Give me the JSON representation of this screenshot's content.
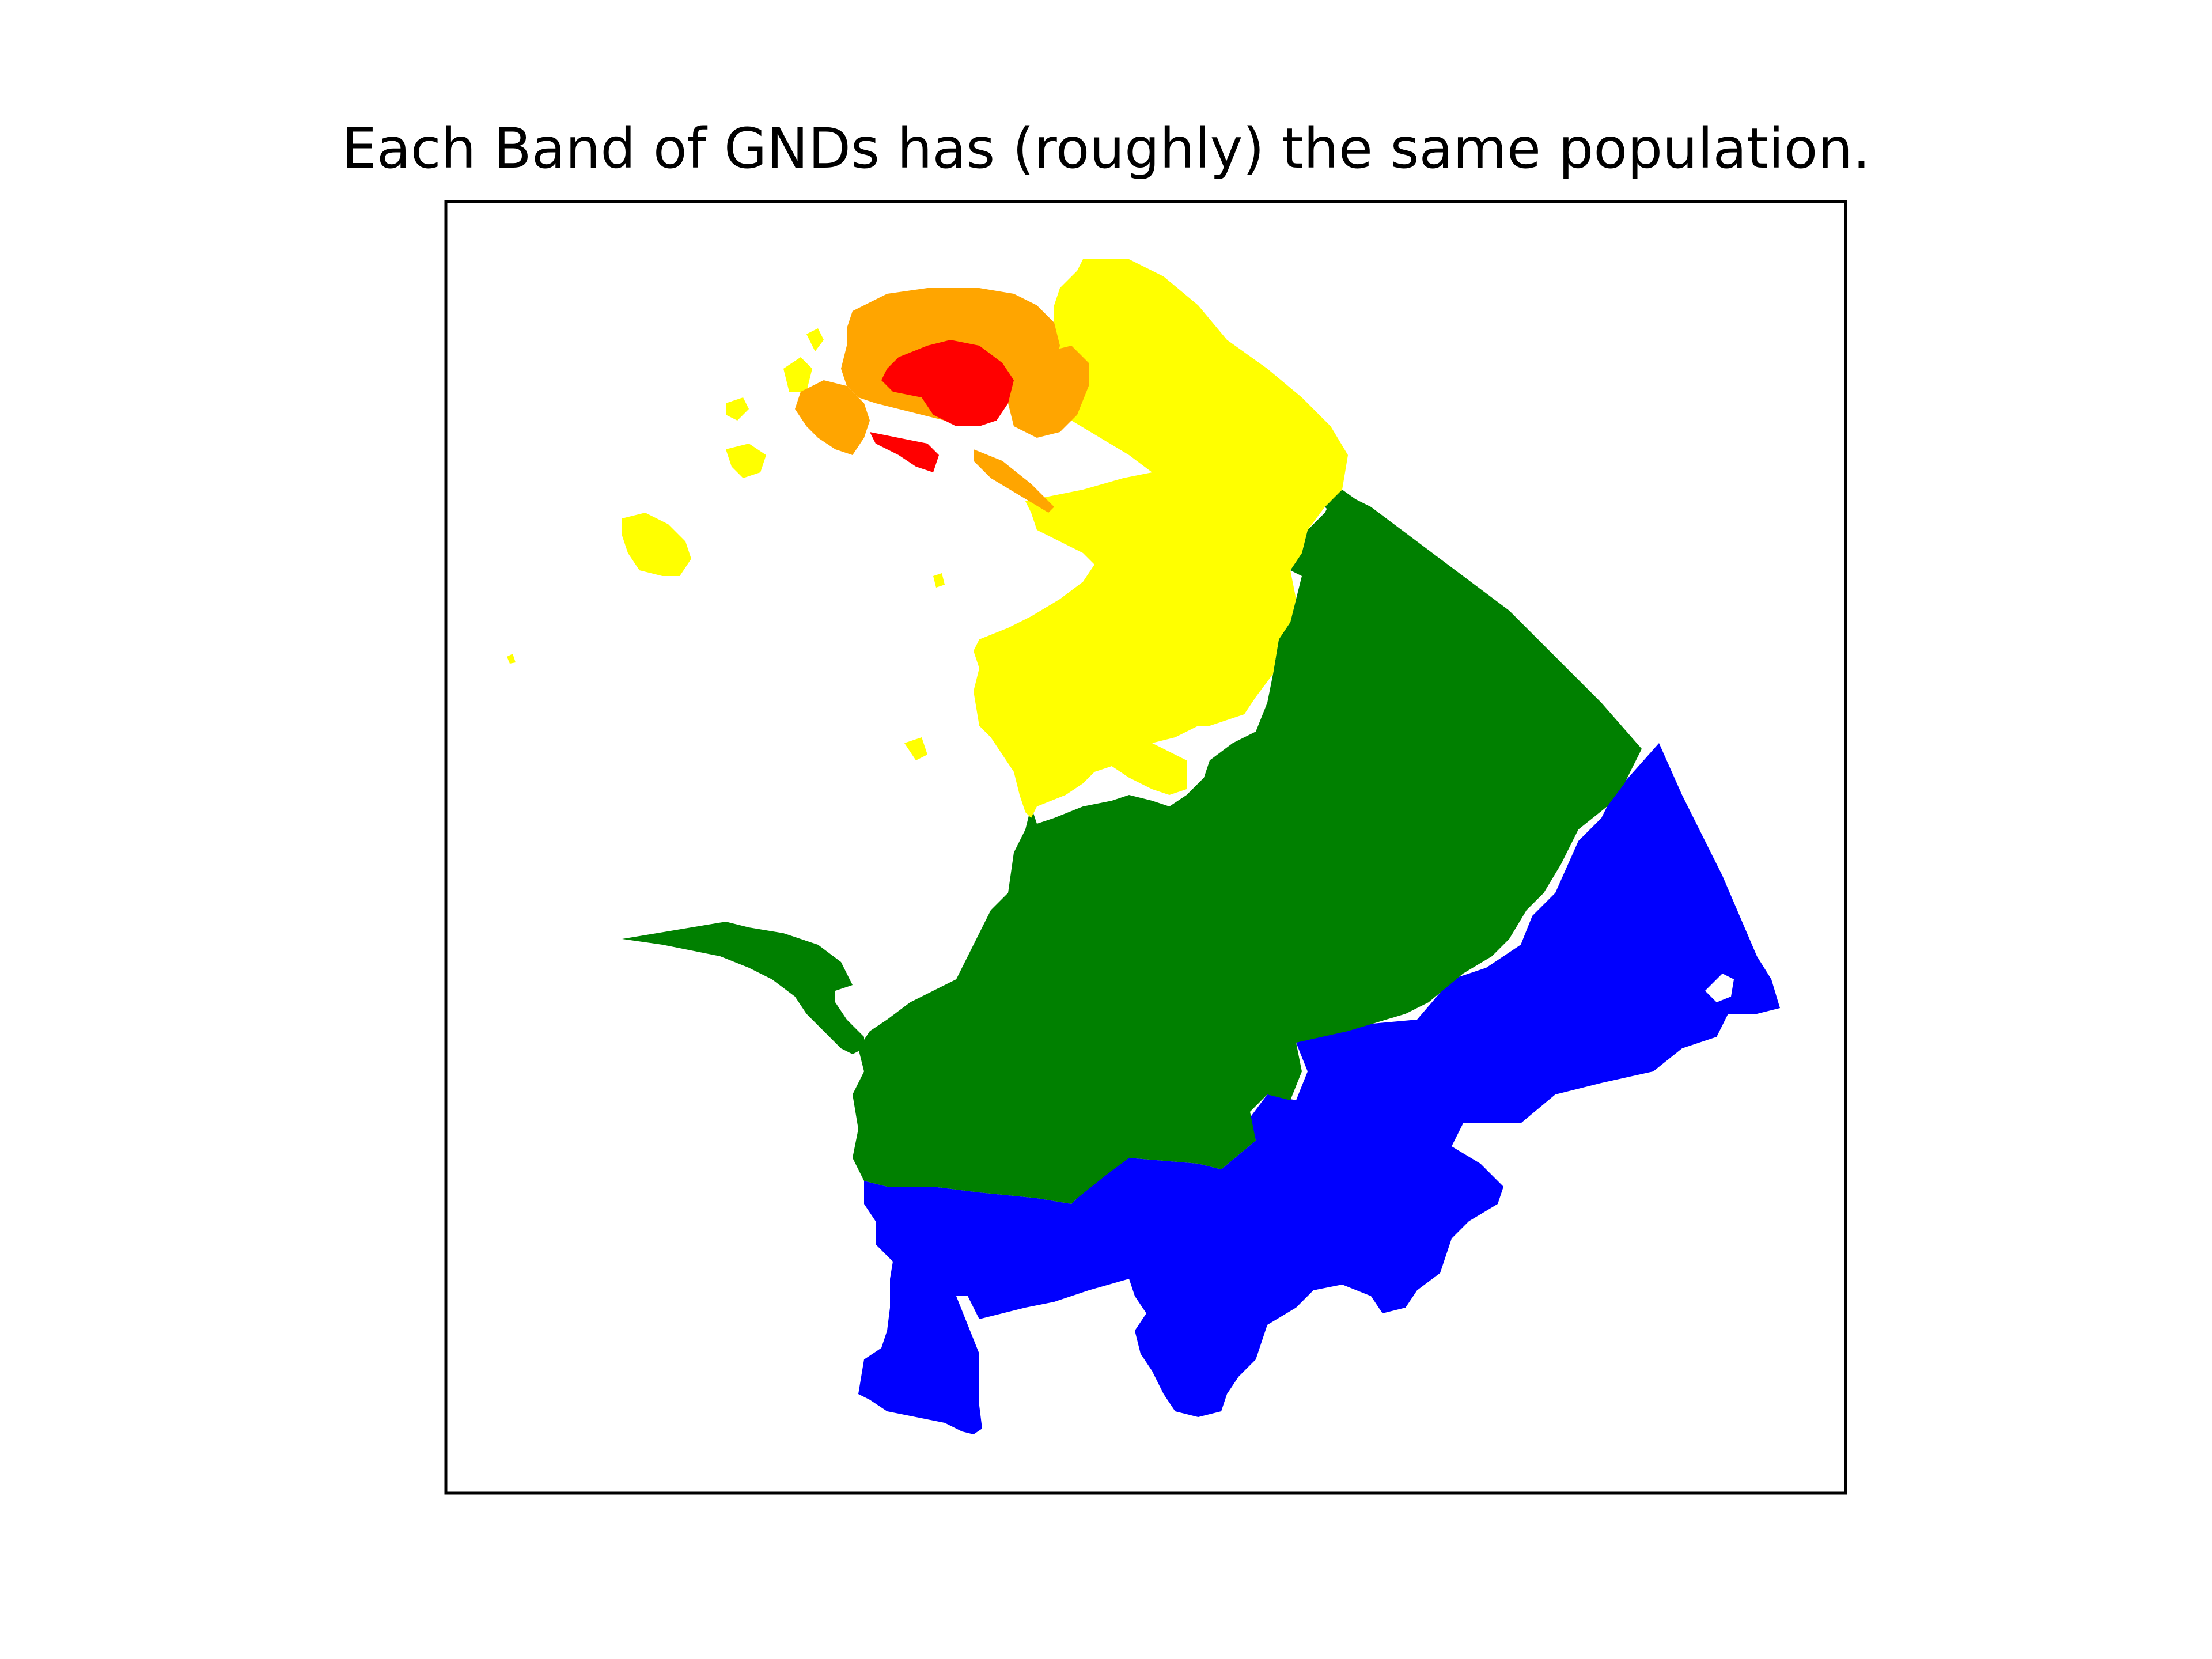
{
  "map": {
    "title": "Each Band of GNDs has (roughly) the same population.",
    "band_colors": {
      "band_1": "#ff0000",
      "band_2": "#ffa500",
      "band_3": "#ffff00",
      "band_4": "#008000",
      "band_5": "#0000ff"
    },
    "background": "#ffffff",
    "axes_frame_color": "#000000",
    "ticks_visible": false
  }
}
